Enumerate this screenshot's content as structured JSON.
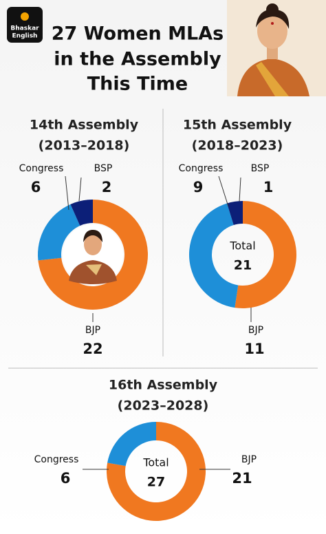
{
  "header": {
    "logo": [
      "Bhaskar",
      "English"
    ],
    "title": [
      "27 Women MLAs",
      "in the Assembly",
      "This Time"
    ]
  },
  "chart_data": [
    {
      "type": "donut",
      "title": "14th Assembly",
      "subtitle": "(2013–2018)",
      "categories": [
        "BJP",
        "Congress",
        "BSP"
      ],
      "values": [
        22,
        6,
        2
      ],
      "colors": [
        "#f07820",
        "#1e8fd8",
        "#0c1f78"
      ]
    },
    {
      "type": "donut",
      "title": "15th Assembly",
      "subtitle": "(2018–2023)",
      "categories": [
        "BJP",
        "Congress",
        "BSP"
      ],
      "values": [
        11,
        9,
        1
      ],
      "colors": [
        "#f07820",
        "#1e8fd8",
        "#0c1f78"
      ],
      "center_label": "Total",
      "center_value": 21
    },
    {
      "type": "donut",
      "title": "16th Assembly",
      "subtitle": "(2023–2028)",
      "categories": [
        "BJP",
        "Congress"
      ],
      "values": [
        21,
        6
      ],
      "colors": [
        "#f07820",
        "#1e8fd8"
      ],
      "center_label": "Total",
      "center_value": 27
    }
  ]
}
